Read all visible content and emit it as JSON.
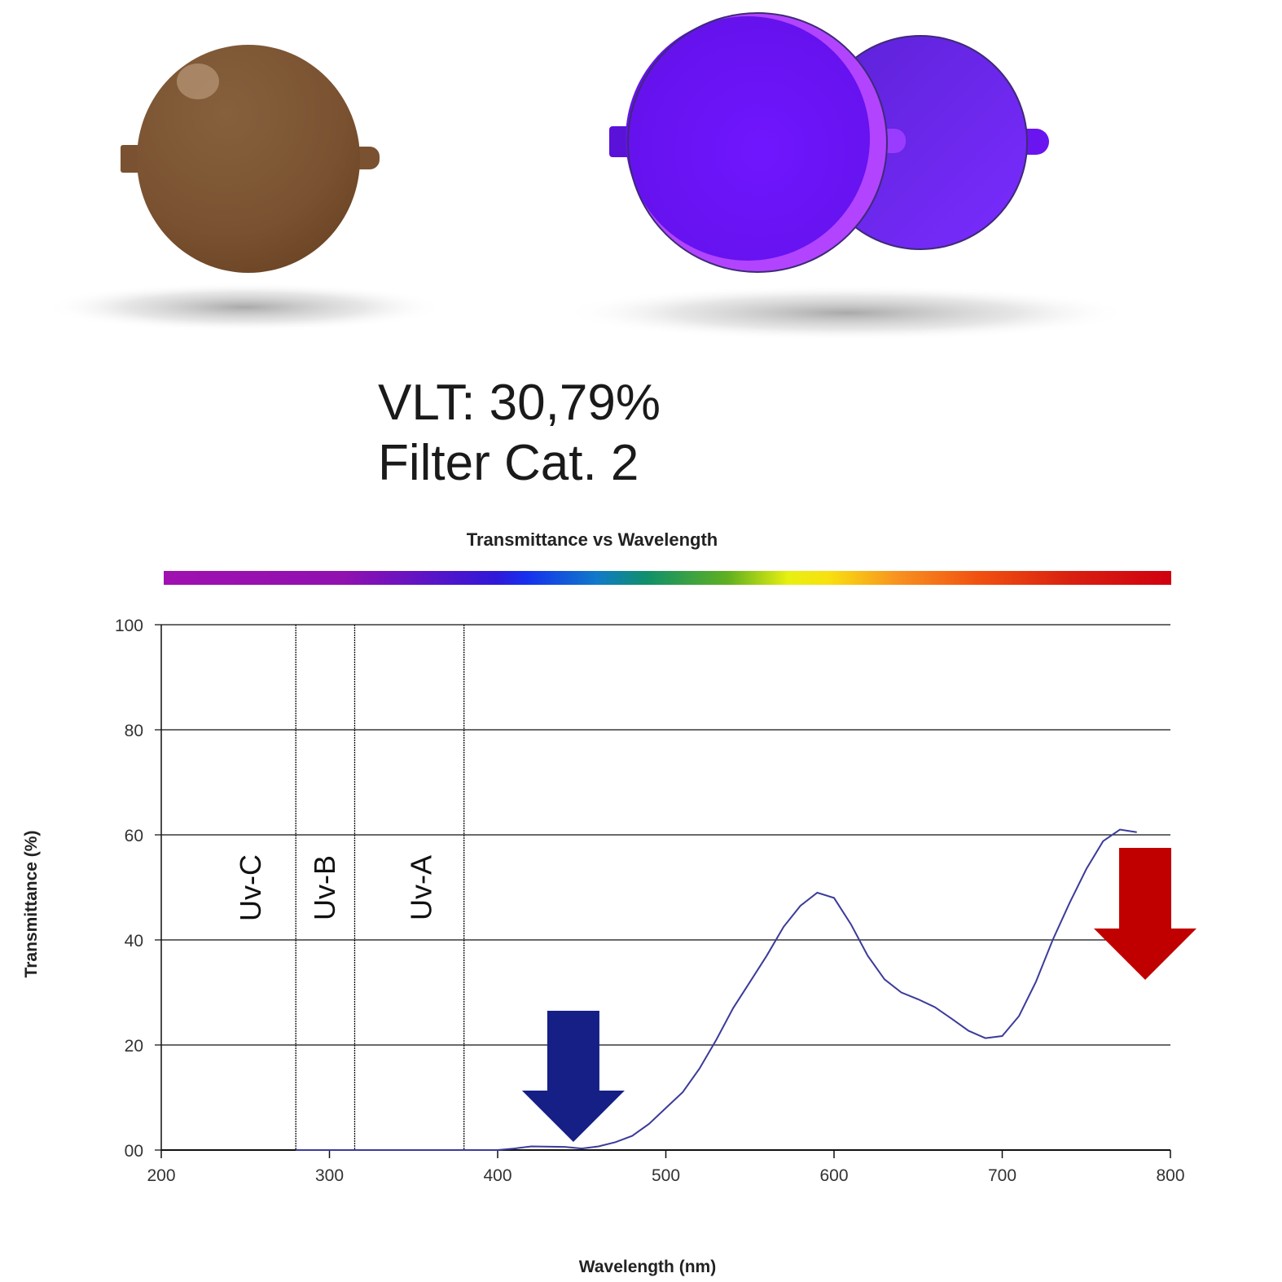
{
  "lens_info": {
    "vlt": "VLT: 30,79%",
    "filter_category": "Filter Cat. 2"
  },
  "colors": {
    "brown_lens": "#7a5231",
    "purple_lens": "#6c10f0",
    "curve": "#3b3b9a",
    "blue_arrow": "#151f86",
    "red_arrow": "#c00000"
  },
  "chart_data": {
    "type": "line",
    "title": "Transmittance vs Wavelength",
    "xlabel": "Wavelength (nm)",
    "ylabel": "Transmittance (%)",
    "xlim": [
      200,
      800
    ],
    "ylim": [
      0,
      100
    ],
    "x_ticks": [
      "200",
      "300",
      "400",
      "500",
      "600",
      "700",
      "800"
    ],
    "y_ticks": [
      "00",
      "20",
      "40",
      "60",
      "80",
      "100"
    ],
    "grid": "horizontal",
    "uv_bands": [
      {
        "label": "Uv-C",
        "from": 200,
        "to": 280
      },
      {
        "label": "Uv-B",
        "from": 280,
        "to": 315
      },
      {
        "label": "Uv-A",
        "from": 315,
        "to": 380
      }
    ],
    "series": [
      {
        "x": [
          280,
          300,
          350,
          400,
          410,
          420,
          440,
          450,
          460,
          470,
          480,
          490,
          500,
          510,
          520,
          530,
          540,
          550,
          560,
          570,
          580,
          590,
          600,
          610,
          620,
          630,
          640,
          650,
          660,
          670,
          680,
          690,
          700,
          710,
          720,
          730,
          740,
          750,
          760,
          770,
          780
        ],
        "y": [
          0,
          0,
          0,
          0,
          0.3,
          0.7,
          0.6,
          0.3,
          0.7,
          1.5,
          2.7,
          5.0,
          8.0,
          11.0,
          15.5,
          21.0,
          27.0,
          32.0,
          37.0,
          42.5,
          46.5,
          49.0,
          48.0,
          43.0,
          37.0,
          32.5,
          30.0,
          28.7,
          27.2,
          25.0,
          22.7,
          21.3,
          21.7,
          25.5,
          32.0,
          40.0,
          47.0,
          53.5,
          58.8,
          61.0,
          60.5
        ]
      }
    ],
    "annotations": [
      {
        "type": "arrow-down",
        "color": "blue",
        "x": 445
      },
      {
        "type": "arrow-down",
        "color": "red",
        "x": 785
      }
    ]
  }
}
